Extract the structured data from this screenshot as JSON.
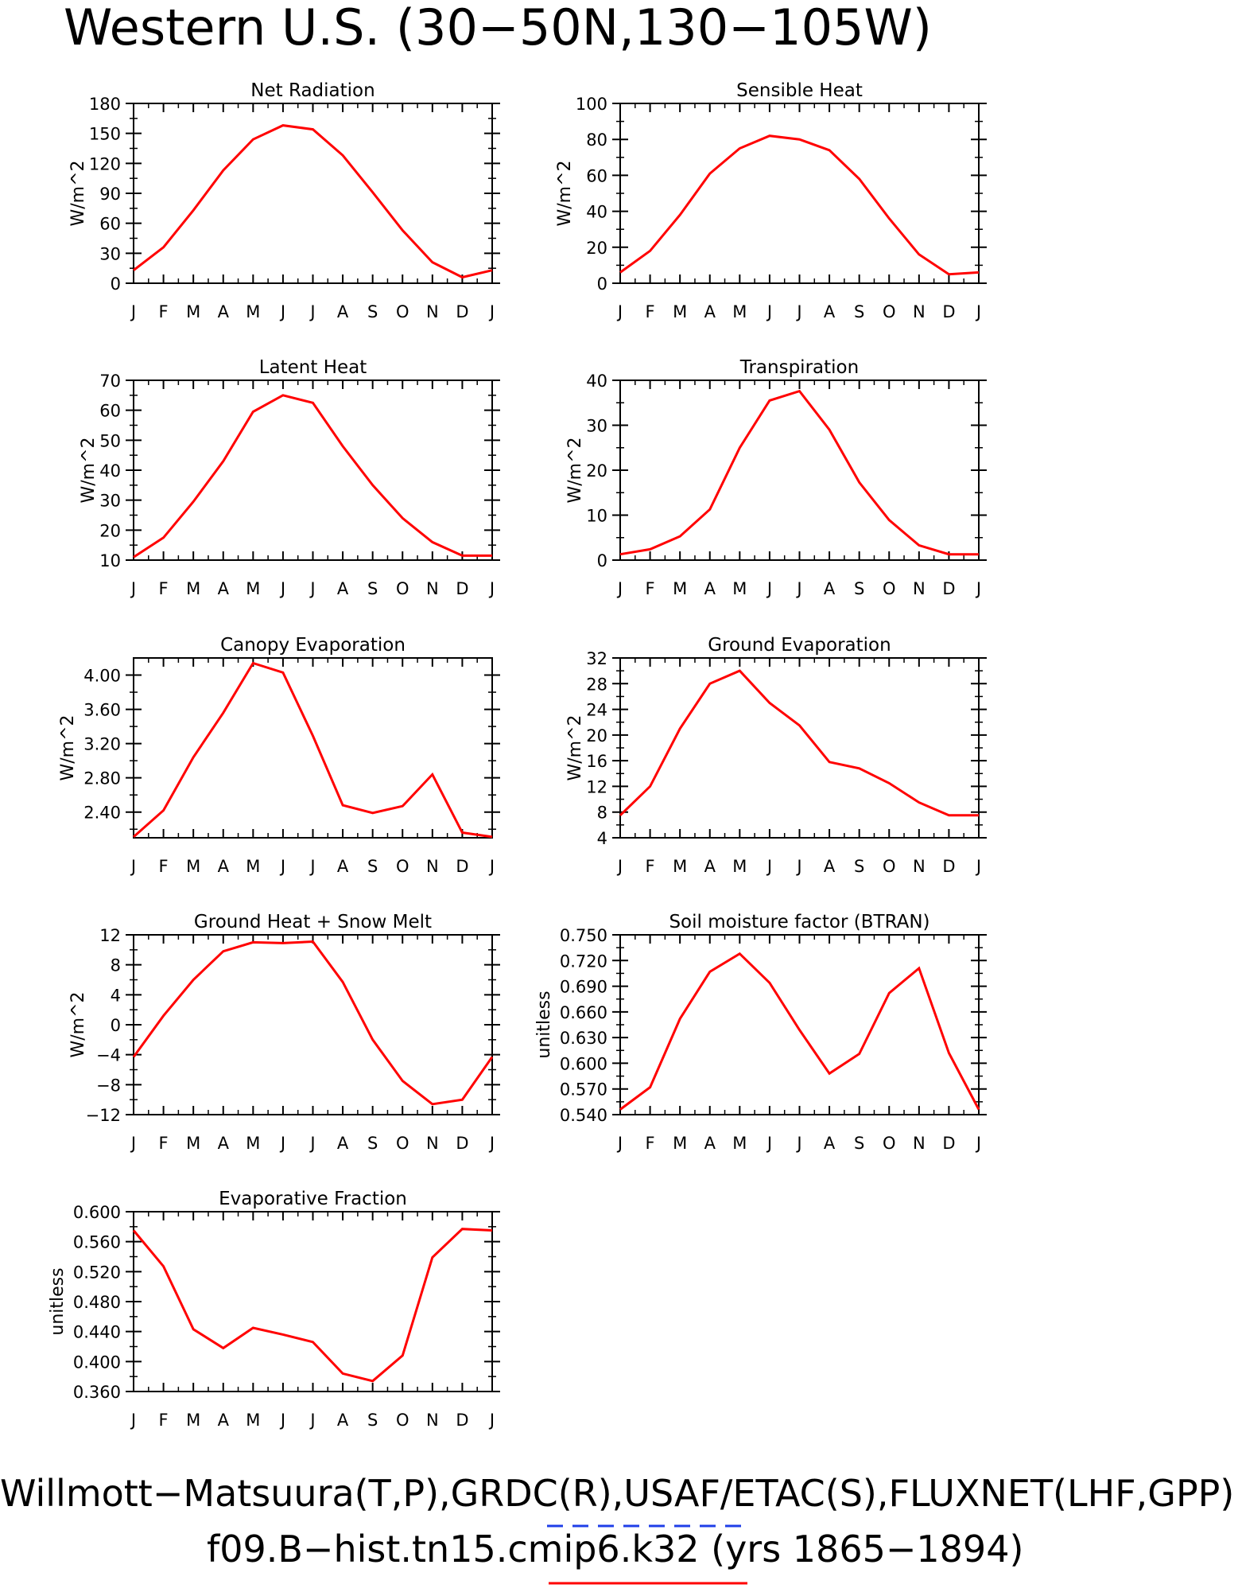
{
  "header": {
    "title": "Western U.S. (30−50N,130−105W)"
  },
  "footer": {
    "line1": "Willmott−Matsuura(T,P),GRDC(R),USAF/ETAC(S),FLUXNET(LHF,GPP)",
    "line2": "f09.B−hist.tn15.cmip6.k32 (yrs 1865−1894)",
    "obs_line_color": "#1f3fe8",
    "model_line_color": "#ff0000"
  },
  "chart_data": [
    {
      "type": "line",
      "title": "Net Radiation",
      "ylabel": "W/m^2",
      "categories": [
        "J",
        "F",
        "M",
        "A",
        "M",
        "J",
        "J",
        "A",
        "S",
        "O",
        "N",
        "D",
        "J"
      ],
      "ylim": [
        0,
        180
      ],
      "yticks": [
        "0",
        "30",
        "60",
        "90",
        "120",
        "150",
        "180"
      ],
      "series": [
        {
          "color": "#ff0000",
          "values": [
            13,
            36,
            73,
            113,
            144,
            158,
            154,
            128,
            91,
            53,
            21,
            6,
            13
          ]
        }
      ]
    },
    {
      "type": "line",
      "title": "Sensible Heat",
      "ylabel": "W/m^2",
      "categories": [
        "J",
        "F",
        "M",
        "A",
        "M",
        "J",
        "J",
        "A",
        "S",
        "O",
        "N",
        "D",
        "J"
      ],
      "ylim": [
        0,
        100
      ],
      "yticks": [
        "0",
        "20",
        "40",
        "60",
        "80",
        "100"
      ],
      "series": [
        {
          "color": "#ff0000",
          "values": [
            6,
            18,
            38,
            61,
            75,
            82,
            80,
            74,
            58,
            36,
            16,
            5,
            6
          ]
        }
      ]
    },
    {
      "type": "line",
      "title": "Latent Heat",
      "ylabel": "W/m^2",
      "categories": [
        "J",
        "F",
        "M",
        "A",
        "M",
        "J",
        "J",
        "A",
        "S",
        "O",
        "N",
        "D",
        "J"
      ],
      "ylim": [
        10,
        70
      ],
      "yticks": [
        "10",
        "20",
        "30",
        "40",
        "50",
        "60",
        "70"
      ],
      "series": [
        {
          "color": "#ff0000",
          "values": [
            11,
            17.5,
            29.5,
            43,
            59.5,
            65,
            62.5,
            48,
            35,
            24,
            16,
            11.5,
            11.5
          ]
        }
      ]
    },
    {
      "type": "line",
      "title": "Transpiration",
      "ylabel": "W/m^2",
      "categories": [
        "J",
        "F",
        "M",
        "A",
        "M",
        "J",
        "J",
        "A",
        "S",
        "O",
        "N",
        "D",
        "J"
      ],
      "ylim": [
        0,
        40
      ],
      "yticks": [
        "0",
        "10",
        "20",
        "30",
        "40"
      ],
      "series": [
        {
          "color": "#ff0000",
          "values": [
            1.3,
            2.4,
            5.3,
            11.3,
            25,
            35.5,
            37.6,
            29,
            17.3,
            8.9,
            3.3,
            1.3,
            1.3
          ]
        }
      ]
    },
    {
      "type": "line",
      "title": "Canopy Evaporation",
      "ylabel": "W/m^2",
      "categories": [
        "J",
        "F",
        "M",
        "A",
        "M",
        "J",
        "J",
        "A",
        "S",
        "O",
        "N",
        "D",
        "J"
      ],
      "ylim": [
        2.1,
        4.2
      ],
      "yticks": [
        "2.40",
        "2.80",
        "3.20",
        "3.60",
        "4.00"
      ],
      "series": [
        {
          "color": "#ff0000",
          "values": [
            2.11,
            2.42,
            3.04,
            3.56,
            4.14,
            4.03,
            3.29,
            2.48,
            2.39,
            2.47,
            2.84,
            2.16,
            2.11
          ]
        }
      ]
    },
    {
      "type": "line",
      "title": "Ground Evaporation",
      "ylabel": "W/m^2",
      "categories": [
        "J",
        "F",
        "M",
        "A",
        "M",
        "J",
        "J",
        "A",
        "S",
        "O",
        "N",
        "D",
        "J"
      ],
      "ylim": [
        4,
        32
      ],
      "yticks": [
        "4",
        "8",
        "12",
        "16",
        "20",
        "24",
        "28",
        "32"
      ],
      "series": [
        {
          "color": "#ff0000",
          "values": [
            7.5,
            12,
            21,
            28,
            30,
            25,
            21.5,
            15.8,
            14.8,
            12.5,
            9.5,
            7.5,
            7.5
          ]
        }
      ]
    },
    {
      "type": "line",
      "title": "Ground Heat + Snow Melt",
      "ylabel": "W/m^2",
      "categories": [
        "J",
        "F",
        "M",
        "A",
        "M",
        "J",
        "J",
        "A",
        "S",
        "O",
        "N",
        "D",
        "J"
      ],
      "ylim": [
        -12,
        12
      ],
      "yticks": [
        "−12",
        "−8",
        "−4",
        "0",
        "4",
        "8",
        "12"
      ],
      "series": [
        {
          "color": "#ff0000",
          "values": [
            -4.3,
            1.2,
            6,
            9.8,
            11,
            10.9,
            11.1,
            5.7,
            -2,
            -7.5,
            -10.6,
            -10,
            -4.3
          ]
        }
      ]
    },
    {
      "type": "line",
      "title": "Soil moisture factor (BTRAN)",
      "ylabel": "unitless",
      "categories": [
        "J",
        "F",
        "M",
        "A",
        "M",
        "J",
        "J",
        "A",
        "S",
        "O",
        "N",
        "D",
        "J"
      ],
      "ylim": [
        0.54,
        0.75
      ],
      "yticks": [
        "0.540",
        "0.570",
        "0.600",
        "0.630",
        "0.660",
        "0.690",
        "0.720",
        "0.750"
      ],
      "series": [
        {
          "color": "#ff0000",
          "values": [
            0.546,
            0.572,
            0.652,
            0.707,
            0.728,
            0.694,
            0.639,
            0.588,
            0.611,
            0.682,
            0.711,
            0.612,
            0.546
          ]
        }
      ]
    },
    {
      "type": "line",
      "title": "Evaporative Fraction",
      "ylabel": "unitless",
      "categories": [
        "J",
        "F",
        "M",
        "A",
        "M",
        "J",
        "J",
        "A",
        "S",
        "O",
        "N",
        "D",
        "J"
      ],
      "ylim": [
        0.36,
        0.6
      ],
      "yticks": [
        "0.360",
        "0.400",
        "0.440",
        "0.480",
        "0.520",
        "0.560",
        "0.600"
      ],
      "series": [
        {
          "color": "#ff0000",
          "values": [
            0.575,
            0.527,
            0.443,
            0.418,
            0.445,
            0.436,
            0.426,
            0.384,
            0.374,
            0.408,
            0.539,
            0.577,
            0.575
          ]
        }
      ]
    }
  ]
}
